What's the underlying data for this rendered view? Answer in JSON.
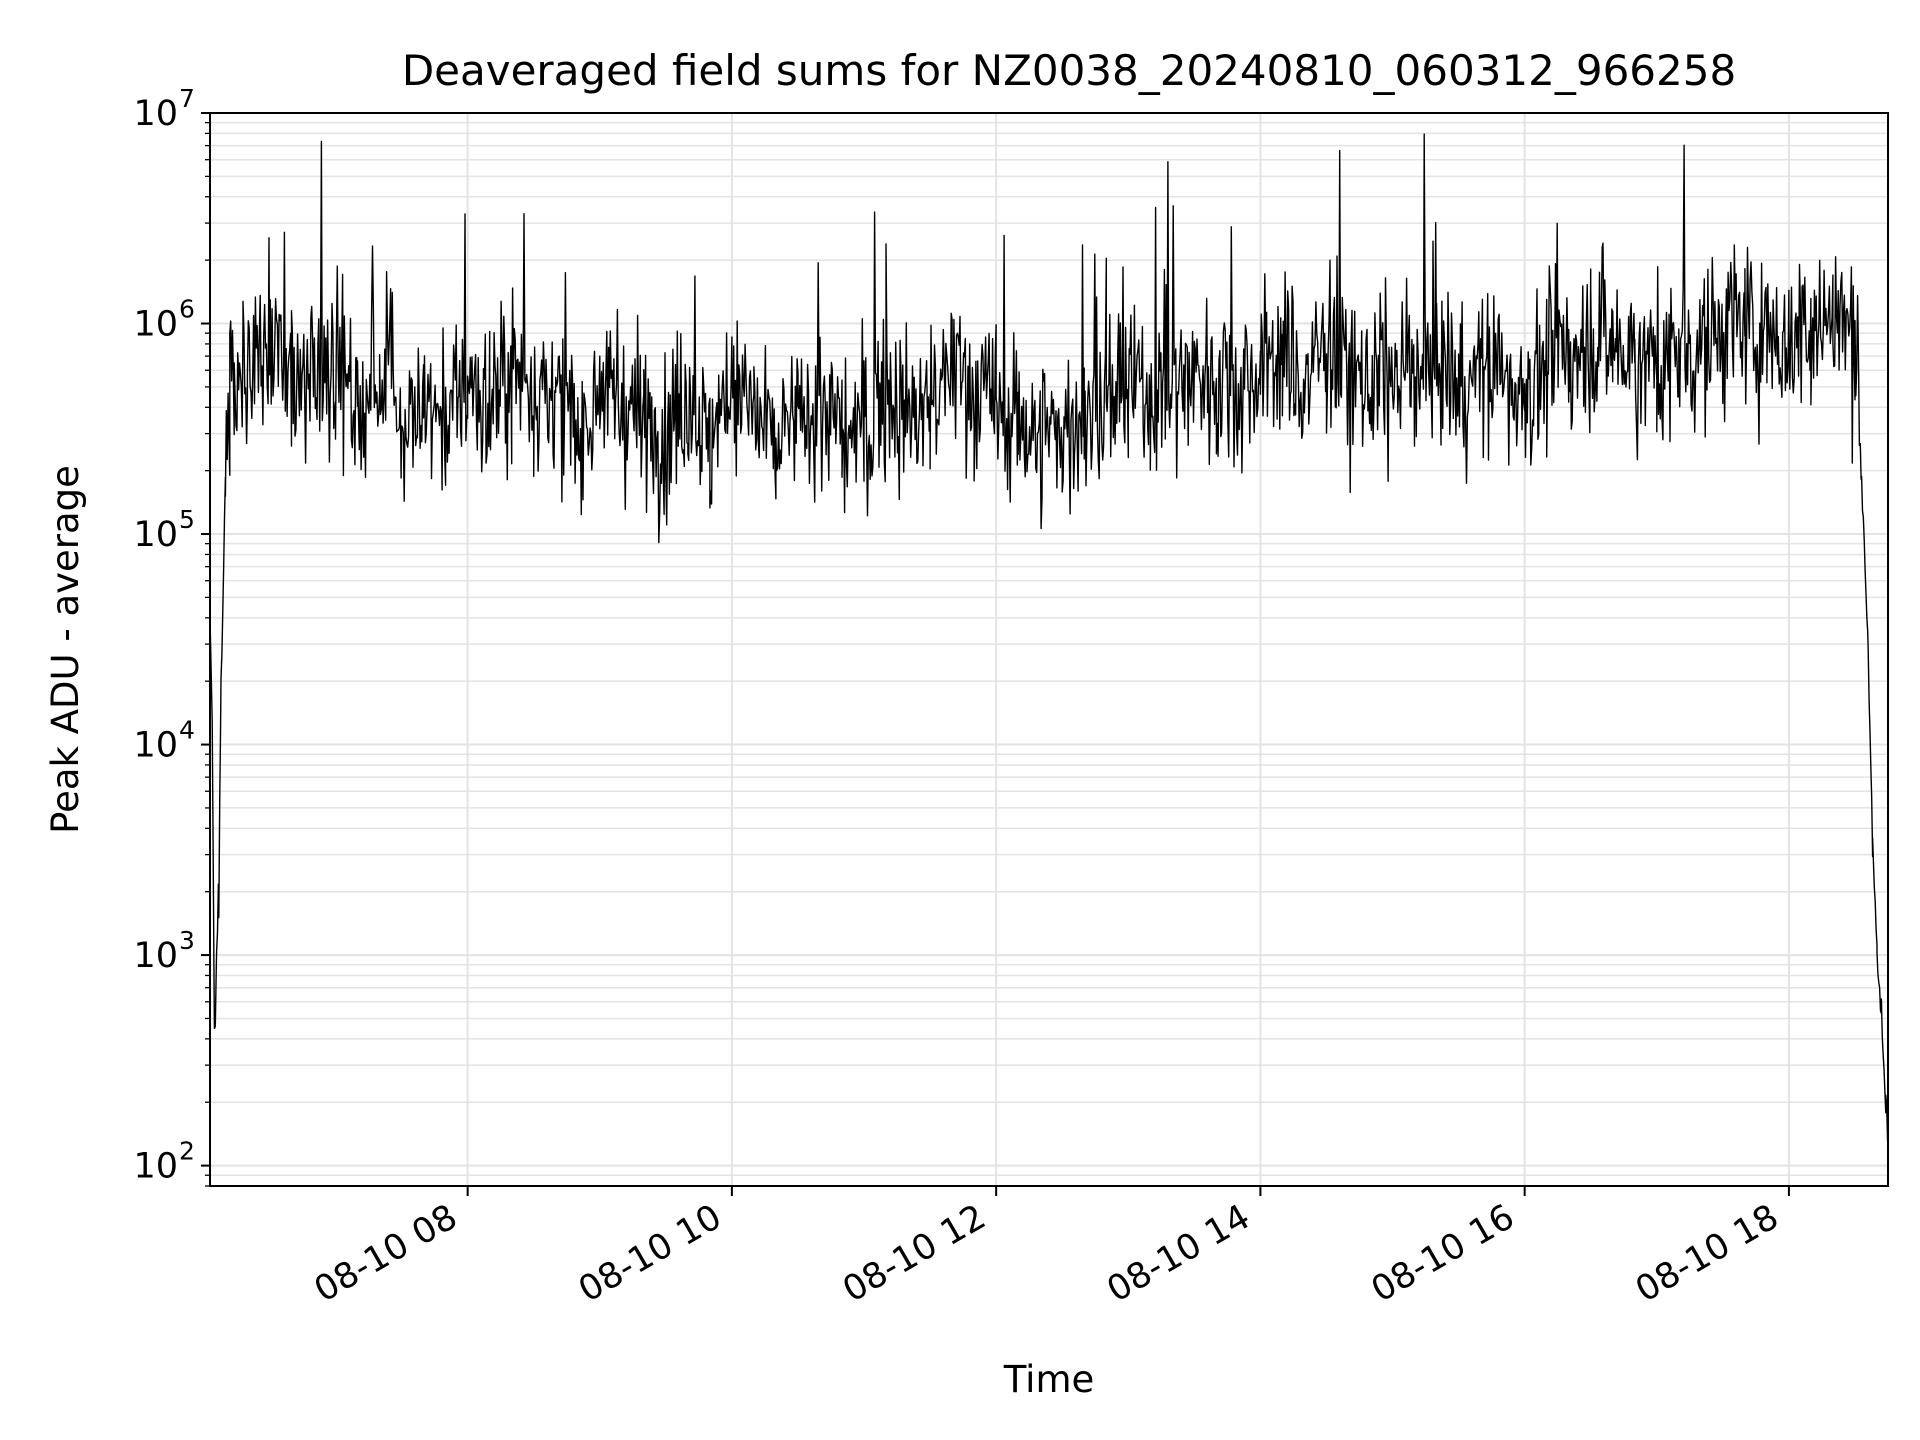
{
  "chart_data": {
    "type": "line",
    "title": "Deaveraged field sums for NZ0038_20240810_060312_966258",
    "xlabel": "Time",
    "ylabel": "Peak ADU - average",
    "yscale": "log",
    "xlim": [
      "2024-08-10 06:03",
      "2024-08-10 18:45"
    ],
    "ylim": [
      80,
      10000000
    ],
    "grid": true,
    "line_color": "#000000",
    "grid_color": "#e3e3e3",
    "x_ticks": [
      {
        "t": "2024-08-10 08:00",
        "label": "08-10 08"
      },
      {
        "t": "2024-08-10 10:00",
        "label": "08-10 10"
      },
      {
        "t": "2024-08-10 12:00",
        "label": "08-10 12"
      },
      {
        "t": "2024-08-10 14:00",
        "label": "08-10 14"
      },
      {
        "t": "2024-08-10 16:00",
        "label": "08-10 16"
      },
      {
        "t": "2024-08-10 18:00",
        "label": "08-10 18"
      }
    ],
    "y_ticks": [
      {
        "value": 100,
        "base": "10",
        "exp": "2"
      },
      {
        "value": 1000,
        "base": "10",
        "exp": "3"
      },
      {
        "value": 10000,
        "base": "10",
        "exp": "4"
      },
      {
        "value": 100000,
        "base": "10",
        "exp": "5"
      },
      {
        "value": 1000000,
        "base": "10",
        "exp": "6"
      },
      {
        "value": 10000000,
        "base": "10",
        "exp": "7"
      }
    ],
    "series": [
      {
        "x": [
          "2024-08-10 06:03",
          "2024-08-10 06:04",
          "2024-08-10 06:05",
          "2024-08-10 06:06",
          "2024-08-10 06:07",
          "2024-08-10 06:08",
          "2024-08-10 06:10",
          "2024-08-10 06:12",
          "2024-08-10 06:14",
          "2024-08-10 06:16",
          "2024-08-10 06:18",
          "2024-08-10 06:20",
          "2024-08-10 06:25",
          "2024-08-10 06:30",
          "2024-08-10 06:40",
          "2024-08-10 06:50",
          "2024-08-10 07:00",
          "2024-08-10 07:10",
          "2024-08-10 07:20",
          "2024-08-10 07:25",
          "2024-08-10 07:30",
          "2024-08-10 07:40",
          "2024-08-10 07:50",
          "2024-08-10 08:00",
          "2024-08-10 08:10",
          "2024-08-10 08:20",
          "2024-08-10 08:30",
          "2024-08-10 08:40",
          "2024-08-10 08:50",
          "2024-08-10 09:00",
          "2024-08-10 09:10",
          "2024-08-10 09:20",
          "2024-08-10 09:30",
          "2024-08-10 09:40",
          "2024-08-10 09:50",
          "2024-08-10 10:00",
          "2024-08-10 10:10",
          "2024-08-10 10:20",
          "2024-08-10 10:30",
          "2024-08-10 10:40",
          "2024-08-10 10:50",
          "2024-08-10 11:00",
          "2024-08-10 11:10",
          "2024-08-10 11:20",
          "2024-08-10 11:30",
          "2024-08-10 11:40",
          "2024-08-10 11:50",
          "2024-08-10 12:00",
          "2024-08-10 12:10",
          "2024-08-10 12:20",
          "2024-08-10 12:30",
          "2024-08-10 12:40",
          "2024-08-10 12:50",
          "2024-08-10 13:00",
          "2024-08-10 13:10",
          "2024-08-10 13:20",
          "2024-08-10 13:30",
          "2024-08-10 13:40",
          "2024-08-10 13:50",
          "2024-08-10 14:00",
          "2024-08-10 14:10",
          "2024-08-10 14:20",
          "2024-08-10 14:30",
          "2024-08-10 14:40",
          "2024-08-10 14:50",
          "2024-08-10 15:00",
          "2024-08-10 15:10",
          "2024-08-10 15:20",
          "2024-08-10 15:30",
          "2024-08-10 15:40",
          "2024-08-10 15:50",
          "2024-08-10 16:00",
          "2024-08-10 16:10",
          "2024-08-10 16:20",
          "2024-08-10 16:30",
          "2024-08-10 16:40",
          "2024-08-10 16:50",
          "2024-08-10 17:00",
          "2024-08-10 17:10",
          "2024-08-10 17:20",
          "2024-08-10 17:30",
          "2024-08-10 17:40",
          "2024-08-10 17:50",
          "2024-08-10 18:00",
          "2024-08-10 18:10",
          "2024-08-10 18:20",
          "2024-08-10 18:30",
          "2024-08-10 18:33",
          "2024-08-10 18:36",
          "2024-08-10 18:38",
          "2024-08-10 18:40",
          "2024-08-10 18:42",
          "2024-08-10 18:44",
          "2024-08-10 18:45"
        ],
        "y": [
          40000,
          15000,
          400,
          1000,
          2000,
          20000,
          200000,
          400000,
          700000,
          500000,
          900000,
          600000,
          700000,
          800000,
          500000,
          600000,
          700000,
          400000,
          500000,
          900000,
          300000,
          400000,
          350000,
          500000,
          400000,
          600000,
          500000,
          400000,
          300000,
          500000,
          400000,
          350000,
          300000,
          500000,
          250000,
          600000,
          400000,
          250000,
          350000,
          400000,
          300000,
          300000,
          500000,
          350000,
          400000,
          600000,
          500000,
          400000,
          350000,
          300000,
          300000,
          350000,
          400000,
          500000,
          450000,
          500000,
          600000,
          550000,
          500000,
          600000,
          700000,
          500000,
          800000,
          600000,
          500000,
          550000,
          600000,
          700000,
          500000,
          600000,
          550000,
          500000,
          600000,
          700000,
          900000,
          800000,
          700000,
          650000,
          700000,
          800000,
          900000,
          1000000,
          900000,
          800000,
          1000000,
          1100000,
          900000,
          200000,
          30000,
          3000,
          1000,
          500,
          200,
          150
        ]
      }
    ]
  }
}
